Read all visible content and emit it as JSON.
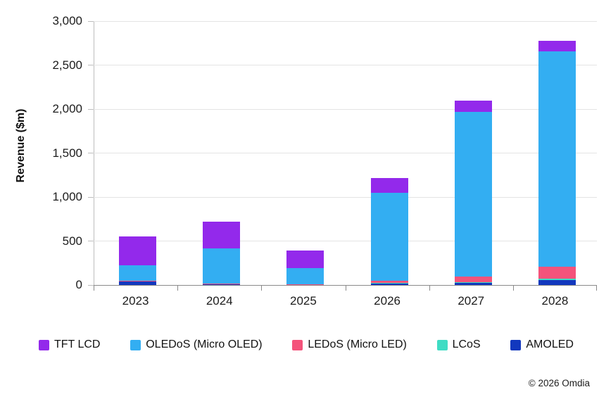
{
  "chart_data": {
    "type": "bar",
    "stacked": true,
    "stack_order": "bottom-to-top",
    "title": "",
    "xlabel": "",
    "ylabel": "Revenue ($m)",
    "ylim": [
      0,
      3000
    ],
    "ytick_step": 500,
    "grid": true,
    "legend_position": "bottom",
    "categories": [
      "2023",
      "2024",
      "2025",
      "2026",
      "2027",
      "2028"
    ],
    "series": [
      {
        "name": "AMOLED",
        "color": "#1238BE",
        "values": [
          40,
          15,
          5,
          20,
          30,
          60
        ]
      },
      {
        "name": "LCoS",
        "color": "#3FDCC4",
        "values": [
          5,
          3,
          2,
          5,
          5,
          10
        ]
      },
      {
        "name": "LEDoS (Micro LED)",
        "color": "#F4537B",
        "values": [
          5,
          2,
          3,
          25,
          65,
          140
        ]
      },
      {
        "name": "OLEDoS (Micro OLED)",
        "color": "#33AEF2",
        "values": [
          175,
          400,
          185,
          995,
          1870,
          2450
        ]
      },
      {
        "name": "TFT LCD",
        "color": "#9329EB",
        "values": [
          330,
          300,
          200,
          170,
          130,
          120
        ]
      }
    ],
    "legend_order": [
      "TFT LCD",
      "OLEDoS (Micro OLED)",
      "LEDoS (Micro LED)",
      "LCoS",
      "AMOLED"
    ],
    "axis_colors": {
      "gridline": "#e4e4e4",
      "y_axis": "#bdbdbd",
      "x_axis": "#8a8a8a"
    }
  },
  "footer": {
    "copyright": "© 2026 Omdia"
  }
}
